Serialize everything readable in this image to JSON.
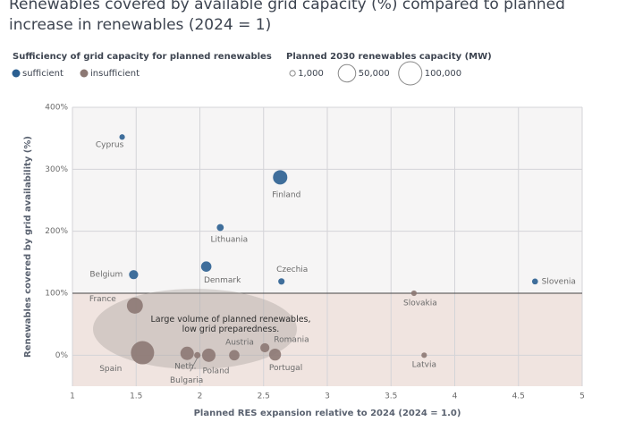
{
  "chart_data": {
    "type": "scatter",
    "title": "Renewables covered by available grid capacity (%) compared to planned increase in renewables (2024 = 1)",
    "x_label": "Planned RES expansion relative to 2024 (2024 = 1.0)",
    "y_label": "Renewables covered by grid availability (%)",
    "legend_title": "Sufficiency of grid capacity for planned renewables",
    "size_legend": {
      "title": "Planned 2030 renewables capacity (MW)",
      "values": [
        {
          "value": 1000,
          "label": "1,000"
        },
        {
          "value": 50000,
          "label": "50,000"
        },
        {
          "value": 100000,
          "label": "100,000"
        }
      ]
    },
    "annotation": "Large volume of planned renewables, low grid preparedness.",
    "hline": 100,
    "xlim": [
      1,
      5
    ],
    "xticks": [
      1,
      1.5,
      2,
      2.5,
      3,
      3.5,
      4,
      4.5,
      5
    ],
    "ylim": [
      -50,
      400
    ],
    "yticks": [
      {
        "value": 0,
        "label": "0%"
      },
      {
        "value": 100,
        "label": "100%"
      },
      {
        "value": 200,
        "label": "200%"
      },
      {
        "value": 300,
        "label": "300%"
      },
      {
        "value": 400,
        "label": "400%"
      }
    ],
    "grid": true,
    "series": [
      {
        "name": "sufficient",
        "color": "#2b5f91",
        "labels": [
          "Cyprus",
          "Finland",
          "Lithuania",
          "Belgium",
          "Denmark",
          "Czechia",
          "Slovenia"
        ],
        "x": [
          1.39,
          2.63,
          2.16,
          1.48,
          2.05,
          2.64,
          4.63
        ],
        "values": [
          352,
          287,
          206,
          130,
          143,
          119,
          119
        ],
        "sizes": [
          1000,
          30000,
          3000,
          8000,
          12000,
          2000,
          1500
        ]
      },
      {
        "name": "insufficient",
        "color": "#8c7873",
        "labels": [
          "Slovakia",
          "France",
          "Spain",
          "Neth.",
          "Bulgaria",
          "Poland",
          "Austria",
          "Romania",
          "Portugal",
          "Latvia"
        ],
        "x": [
          3.68,
          1.49,
          1.55,
          1.9,
          1.98,
          2.07,
          2.27,
          2.51,
          2.59,
          3.76
        ],
        "values": [
          100,
          80,
          4,
          3,
          0,
          0,
          0,
          12,
          1,
          0
        ],
        "sizes": [
          1000,
          40000,
          100000,
          25000,
          2000,
          25000,
          12000,
          8000,
          18000,
          1000
        ]
      }
    ]
  }
}
